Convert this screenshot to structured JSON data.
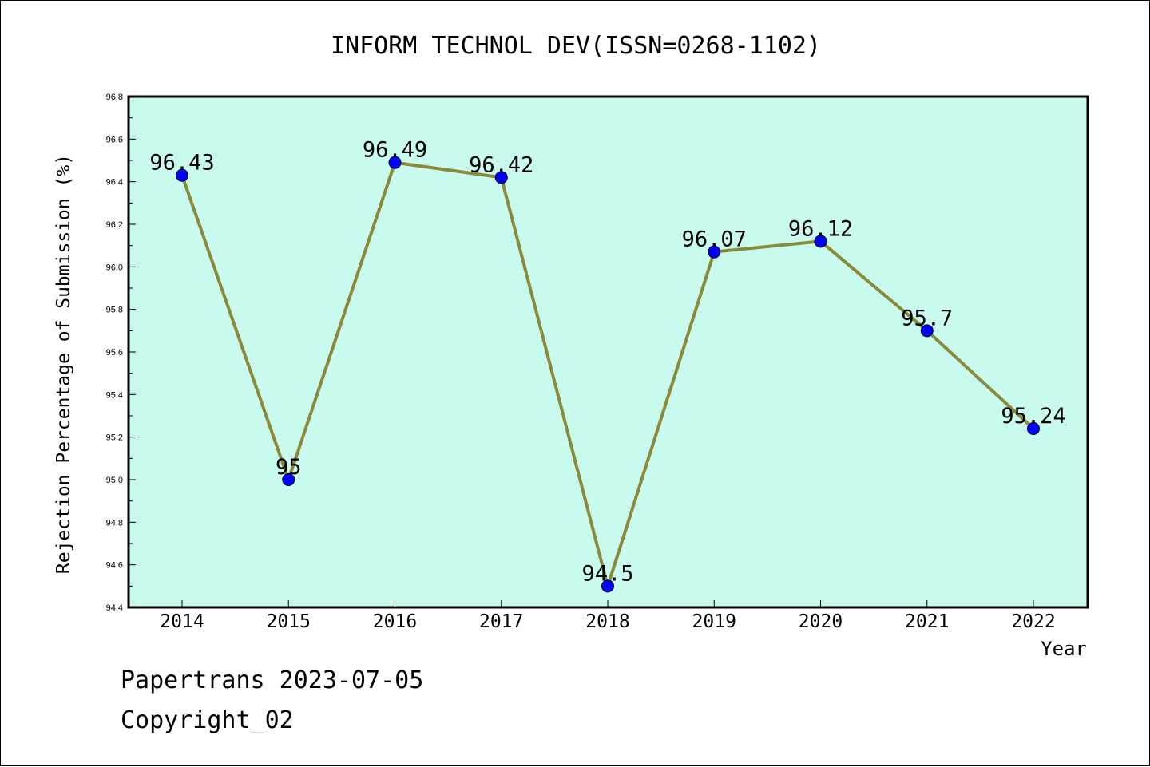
{
  "chart_data": {
    "type": "line",
    "title": "INFORM TECHNOL DEV(ISSN=0268-1102)",
    "xlabel": "Year",
    "ylabel": "Rejection Percentage of Submission (%)",
    "categories": [
      "2014",
      "2015",
      "2016",
      "2017",
      "2018",
      "2019",
      "2020",
      "2021",
      "2022"
    ],
    "series": [
      {
        "values": [
          96.43,
          95.0,
          96.49,
          96.42,
          94.5,
          96.07,
          96.12,
          95.7,
          95.24
        ],
        "labels": [
          "96.43",
          "95",
          "96.49",
          "96.42",
          "94.5",
          "96.07",
          "96.12",
          "95.7",
          "95.24"
        ]
      }
    ],
    "ylim": [
      94.4,
      96.8
    ],
    "yticks": [
      "94.4",
      "94.6",
      "94.8",
      "95.0",
      "95.2",
      "95.4",
      "95.6",
      "95.8",
      "96.0",
      "96.2",
      "96.4",
      "96.6",
      "96.8"
    ],
    "grid": false,
    "colors": {
      "plot_background": "#c8fbee",
      "line": "#8b8a3a",
      "marker": "#0000ff"
    }
  },
  "footer": {
    "line1": "Papertrans 2023-07-05",
    "line2": "Copyright_02"
  }
}
